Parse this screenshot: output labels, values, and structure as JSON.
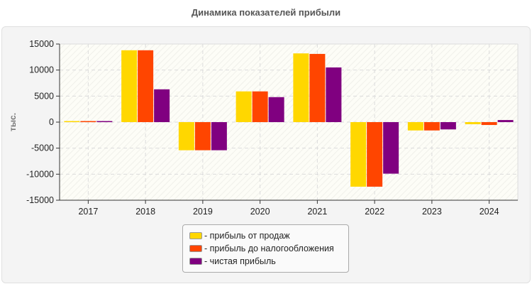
{
  "chart_data": {
    "type": "bar",
    "title": "Динамика показателей прибыли",
    "ylabel": "тыс.",
    "xlabel": "",
    "ylim": [
      -15000,
      15000
    ],
    "yticks": [
      "15000",
      "10000",
      "5000",
      "0",
      "-5000",
      "-10000",
      "-15000"
    ],
    "categories": [
      "2017",
      "2018",
      "2019",
      "2020",
      "2021",
      "2022",
      "2023",
      "2024"
    ],
    "grid": true,
    "legend_position": "bottom",
    "series": [
      {
        "name": "- прибыль от продаж",
        "color": "#FFD700",
        "values": [
          200,
          13800,
          -5400,
          5900,
          13200,
          -12400,
          -1600,
          -400
        ]
      },
      {
        "name": "- прибыль до налогообложения",
        "color": "#FF4500",
        "values": [
          200,
          13800,
          -5400,
          5900,
          13100,
          -12400,
          -1600,
          -550
        ]
      },
      {
        "name": "- чистая прибыль",
        "color": "#800080",
        "values": [
          200,
          6300,
          -5400,
          4800,
          10500,
          -9900,
          -1400,
          400
        ]
      }
    ]
  }
}
